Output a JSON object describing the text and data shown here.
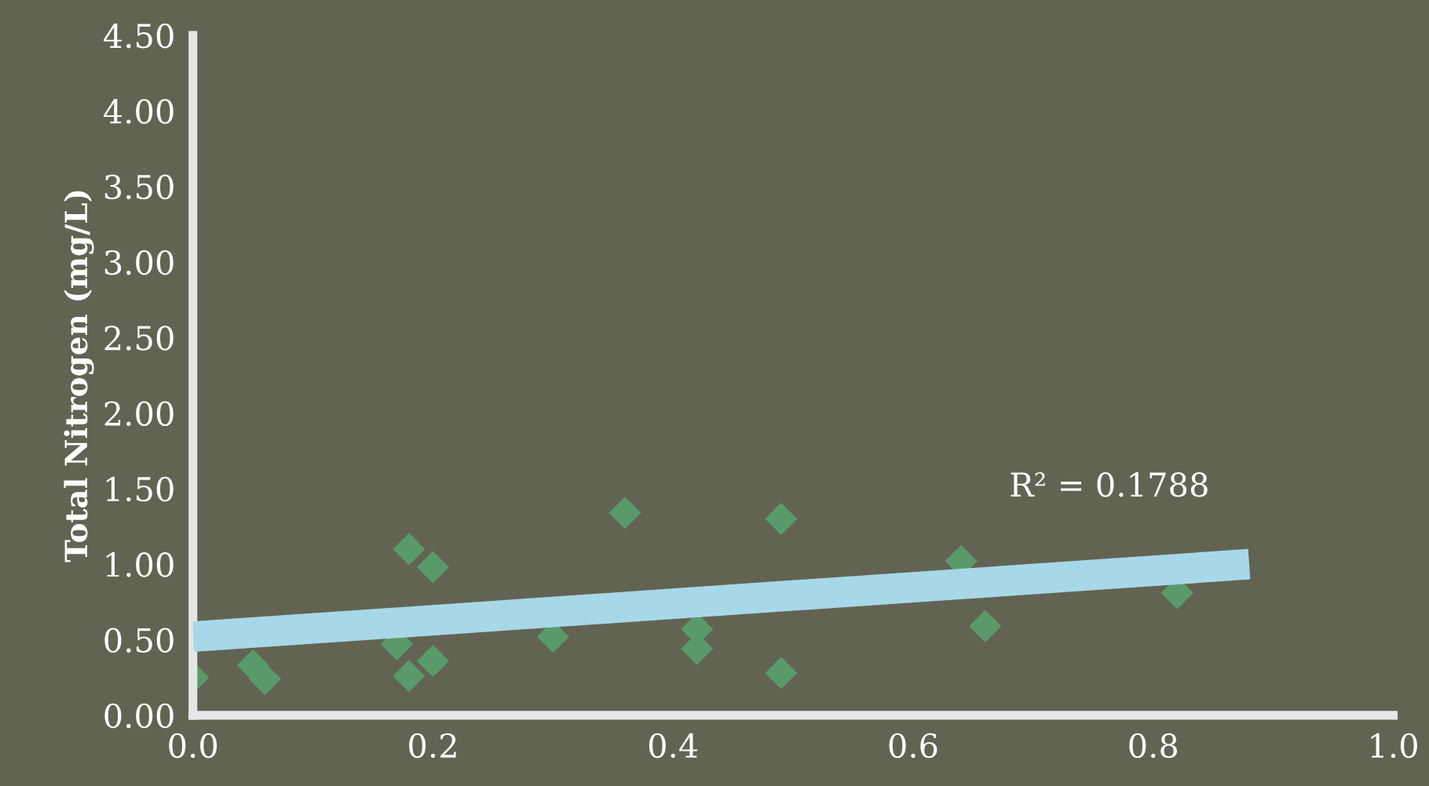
{
  "chart_data": {
    "type": "scatter",
    "ylabel": "Total Nitrogen (mg/L)",
    "xlim": [
      0,
      1.0
    ],
    "ylim": [
      0,
      4.5
    ],
    "xticks": [
      {
        "value": 0,
        "label": "0.0"
      },
      {
        "value": 0.2,
        "label": "0.2"
      },
      {
        "value": 0.4,
        "label": "0.4"
      },
      {
        "value": 0.6,
        "label": "0.6"
      },
      {
        "value": 0.8,
        "label": "0.8"
      },
      {
        "value": 1.0,
        "label": "1.0"
      }
    ],
    "yticks": [
      {
        "value": 0,
        "label": "0.00"
      },
      {
        "value": 0.5,
        "label": "0.50"
      },
      {
        "value": 1.0,
        "label": "1.00"
      },
      {
        "value": 1.5,
        "label": "1.50"
      },
      {
        "value": 2.0,
        "label": "2.00"
      },
      {
        "value": 2.5,
        "label": "2.50"
      },
      {
        "value": 3.0,
        "label": "3.00"
      },
      {
        "value": 3.5,
        "label": "3.50"
      },
      {
        "value": 4.0,
        "label": "4.00"
      },
      {
        "value": 4.5,
        "label": "4.50"
      }
    ],
    "grid": false,
    "legend": false,
    "annotations": [
      "R² = 0.1788"
    ],
    "series": [
      {
        "marker": "diamond",
        "color": "#5a9a6a",
        "x": [
          0.0,
          0.05,
          0.06,
          0.17,
          0.18,
          0.18,
          0.2,
          0.2,
          0.3,
          0.36,
          0.37,
          0.42,
          0.42,
          0.49,
          0.49,
          0.64,
          0.66,
          0.82
        ],
        "values": [
          0.25,
          0.33,
          0.24,
          0.47,
          1.1,
          0.26,
          0.98,
          0.36,
          0.52,
          1.34,
          null,
          0.44,
          0.57,
          1.3,
          0.28,
          1.02,
          0.59,
          0.81
        ]
      },
      {
        "type": "line",
        "color": "#a8d8e8",
        "x": [
          0.0,
          0.88
        ],
        "values": [
          0.52,
          1.0
        ]
      }
    ]
  }
}
